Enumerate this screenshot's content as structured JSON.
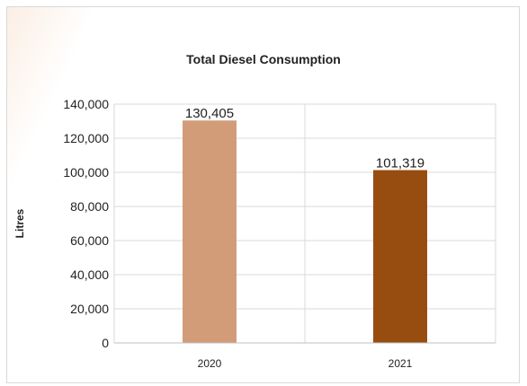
{
  "chart_data": {
    "type": "bar",
    "title": "Total Diesel Consumption",
    "xlabel": "",
    "ylabel": "Litres",
    "categories": [
      "2020",
      "2021"
    ],
    "series": [
      {
        "values": [
          130405,
          101319
        ],
        "labels": [
          "130,405",
          "101,319"
        ]
      }
    ],
    "bar_colors": [
      "#d39c79",
      "#984d10"
    ],
    "ylim": [
      0,
      140000
    ],
    "yticks": [
      0,
      20000,
      40000,
      60000,
      80000,
      100000,
      120000,
      140000
    ],
    "ytick_labels": [
      "0",
      "20,000",
      "40,000",
      "60,000",
      "80,000",
      "100,000",
      "120,000",
      "140,000"
    ],
    "grid": true,
    "legend": "none"
  }
}
